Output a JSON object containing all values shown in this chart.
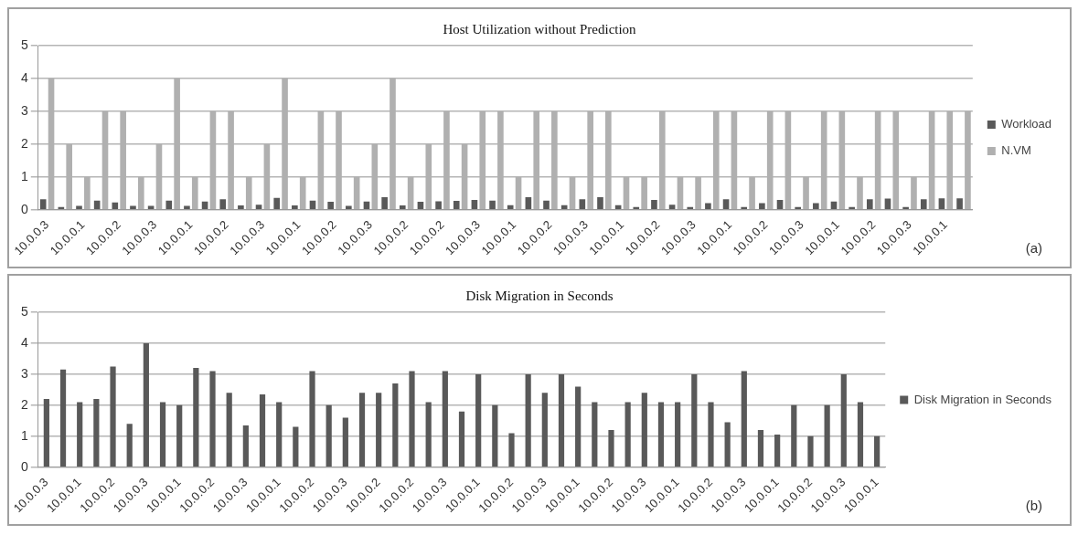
{
  "chart_data": [
    {
      "type": "bar",
      "title": "Host Utilization without Prediction",
      "categories": [
        "10.0.0.3",
        null,
        "10.0.0.1",
        null,
        "10.0.0.2",
        null,
        "10.0.0.3",
        null,
        "10.0.0.1",
        null,
        "10.0.0.2",
        null,
        "10.0.0.3",
        null,
        "10.0.0.1",
        null,
        "10.0.0.2",
        null,
        "10.0.0.3",
        null,
        "10.0.0.2",
        null,
        "10.0.0.2",
        null,
        "10.0.0.3",
        null,
        "10.0.0.1",
        null,
        "10.0.0.2",
        null,
        "10.0.0.3",
        null,
        "10.0.0.1",
        null,
        "10.0.0.2",
        null,
        "10.0.0.3",
        null,
        "10.0.0.1",
        null,
        "10.0.0.2",
        null,
        "10.0.0.3",
        null,
        "10.0.0.1",
        null,
        "10.0.0.2",
        null,
        "10.0.0.3",
        null,
        "10.0.0.1",
        null
      ],
      "series": [
        {
          "name": "Workload",
          "color": "#595959",
          "values": [
            0.32,
            0.08,
            0.12,
            0.28,
            0.22,
            0.12,
            0.12,
            0.28,
            0.12,
            0.25,
            0.32,
            0.13,
            0.15,
            0.36,
            0.13,
            0.28,
            0.24,
            0.12,
            0.25,
            0.38,
            0.13,
            0.24,
            0.26,
            0.27,
            0.3,
            0.28,
            0.14,
            0.38,
            0.28,
            0.14,
            0.32,
            0.38,
            0.14,
            0.08,
            0.3,
            0.15,
            0.08,
            0.2,
            0.32,
            0.08,
            0.2,
            0.3,
            0.08,
            0.2,
            0.25,
            0.08,
            0.32,
            0.34,
            0.08,
            0.32,
            0.35,
            0.35
          ]
        },
        {
          "name": "N.VM",
          "color": "#b0b0b0",
          "values": [
            4,
            2,
            1,
            3,
            3,
            1,
            2,
            4,
            1,
            3,
            3,
            1,
            2,
            4,
            1,
            3,
            3,
            1,
            2,
            4,
            1,
            2,
            3,
            2,
            3,
            3,
            1,
            3,
            3,
            1,
            3,
            3,
            1,
            1,
            3,
            1,
            1,
            3,
            3,
            1,
            3,
            3,
            1,
            3,
            3,
            1,
            3,
            3,
            1,
            3,
            3,
            3
          ]
        }
      ],
      "ylim": [
        0,
        5
      ],
      "yticks": [
        0,
        1,
        2,
        3,
        4,
        5
      ],
      "grid": "y",
      "legend": "right",
      "annotations": [
        "(a)"
      ]
    },
    {
      "type": "bar",
      "title": "Disk Migration in Seconds",
      "categories": [
        "10.0.0.3",
        null,
        "10.0.0.1",
        null,
        "10.0.0.2",
        null,
        "10.0.0.3",
        null,
        "10.0.0.1",
        null,
        "10.0.0.2",
        null,
        "10.0.0.3",
        null,
        "10.0.0.1",
        null,
        "10.0.0.2",
        null,
        "10.0.0.3",
        null,
        "10.0.0.2",
        null,
        "10.0.0.2",
        null,
        "10.0.0.3",
        null,
        "10.0.0.1",
        null,
        "10.0.0.2",
        null,
        "10.0.0.3",
        null,
        "10.0.0.1",
        null,
        "10.0.0.2",
        null,
        "10.0.0.3",
        null,
        "10.0.0.1",
        null,
        "10.0.0.2",
        null,
        "10.0.0.3",
        null,
        "10.0.0.1",
        null,
        "10.0.0.2",
        null,
        "10.0.0.3",
        null,
        "10.0.0.1"
      ],
      "series": [
        {
          "name": "Disk Migration in Seconds",
          "color": "#595959",
          "values": [
            2.2,
            3.15,
            2.1,
            2.2,
            3.25,
            1.4,
            4.0,
            2.1,
            2.0,
            3.2,
            3.1,
            2.4,
            1.35,
            2.35,
            2.1,
            1.3,
            3.1,
            2.0,
            1.6,
            2.4,
            2.4,
            2.7,
            3.1,
            2.1,
            3.1,
            1.8,
            3.0,
            2.0,
            1.1,
            3.0,
            2.4,
            3.0,
            2.6,
            2.1,
            1.2,
            2.1,
            2.4,
            2.1,
            2.1,
            3.0,
            2.1,
            1.45,
            3.1,
            1.2,
            1.05,
            2.0,
            1.0,
            2.0,
            3.0,
            2.1,
            1.0
          ]
        }
      ],
      "ylim": [
        0,
        5
      ],
      "yticks": [
        0,
        1,
        2,
        3,
        4,
        5
      ],
      "grid": "y",
      "legend": "right",
      "annotations": [
        "(b)"
      ]
    }
  ]
}
